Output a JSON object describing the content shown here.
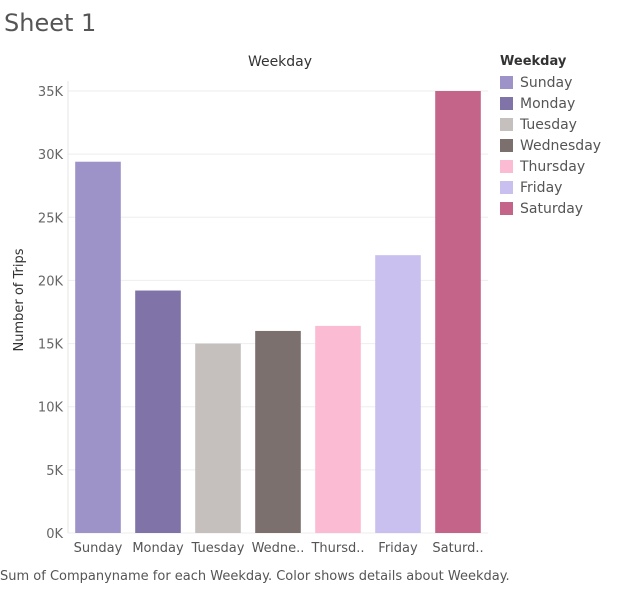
{
  "sheet": {
    "title": "Sheet 1"
  },
  "legend": {
    "title": "Weekday"
  },
  "caption": "Sum of Companyname for each Weekday.  Color shows details about Weekday.",
  "chart_data": {
    "type": "bar",
    "title": "Weekday",
    "xlabel": "",
    "ylabel": "Number of Trips",
    "categories": [
      "Sunday",
      "Monday",
      "Tuesday",
      "Wednesday",
      "Thursday",
      "Friday",
      "Saturday"
    ],
    "tick_labels": [
      "Sunday",
      "Monday",
      "Tuesday",
      "Wedne..",
      "Thursd..",
      "Friday",
      "Saturd.."
    ],
    "values": [
      29400,
      19200,
      15000,
      16000,
      16400,
      22000,
      35000
    ],
    "colors": [
      "#9d93c8",
      "#8073a8",
      "#c5c0bd",
      "#7b706d",
      "#fbbbd2",
      "#c9c0ef",
      "#c46489"
    ],
    "ylim": [
      0,
      35000
    ],
    "yticks": [
      0,
      5000,
      10000,
      15000,
      20000,
      25000,
      30000,
      35000
    ],
    "ytick_labels": [
      "0K",
      "5K",
      "10K",
      "15K",
      "20K",
      "25K",
      "30K",
      "35K"
    ],
    "grid": true,
    "legend_position": "right"
  }
}
